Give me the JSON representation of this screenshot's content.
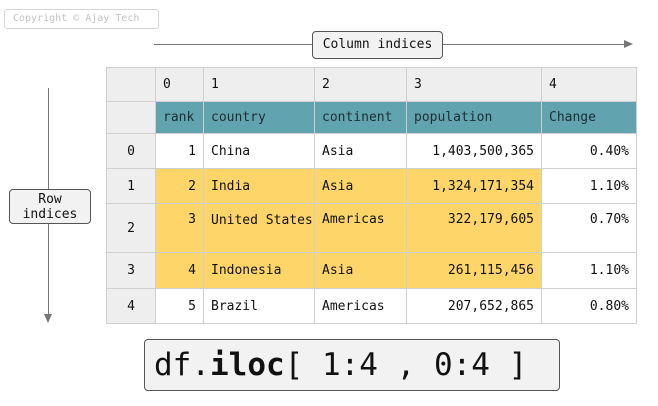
{
  "copyright": "Copyright © Ajay Tech",
  "column_indices_label": "Column indices",
  "row_indices_label": {
    "line1": "Row",
    "line2": "indices"
  },
  "table": {
    "col_index": [
      "0",
      "1",
      "2",
      "3",
      "4"
    ],
    "headers": [
      "rank",
      "country",
      "continent",
      "population",
      "Change"
    ],
    "rows": [
      {
        "index": "0",
        "rank": "1",
        "country": "China",
        "continent": "Asia",
        "population": "1,403,500,365",
        "change": "0.40%"
      },
      {
        "index": "1",
        "rank": "2",
        "country": "India",
        "continent": "Asia",
        "population": "1,324,171,354",
        "change": "1.10%"
      },
      {
        "index": "2",
        "rank": "3",
        "country": "United States",
        "continent": "Americas",
        "population": "322,179,605",
        "change": "0.70%"
      },
      {
        "index": "3",
        "rank": "4",
        "country": "Indonesia",
        "continent": "Asia",
        "population": "261,115,456",
        "change": "1.10%"
      },
      {
        "index": "4",
        "rank": "5",
        "country": "Brazil",
        "continent": "Americas",
        "population": "207,652,865",
        "change": "0.80%"
      }
    ],
    "highlight_color": "#fed569",
    "header_color": "#62a3b0"
  },
  "code": {
    "prefix": "df.",
    "method": "iloc",
    "args": "[ 1:4 , 0:4 ]"
  }
}
